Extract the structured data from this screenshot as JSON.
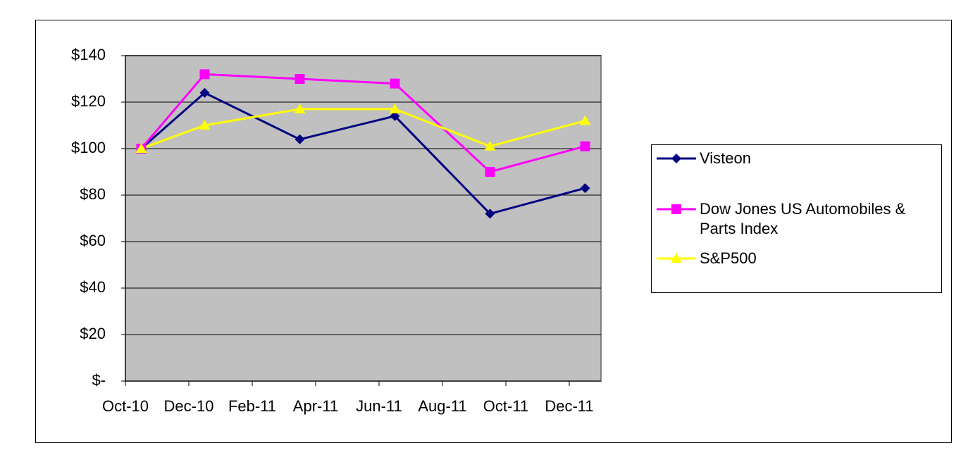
{
  "chart_data": {
    "type": "line",
    "x": [
      "2010-10",
      "2010-12",
      "2011-03",
      "2011-06",
      "2011-09",
      "2011-12"
    ],
    "xlim": [
      "2010-10",
      "2012-01"
    ],
    "xticks": [
      {
        "value": "2010-10",
        "label": "Oct-10"
      },
      {
        "value": "2010-12",
        "label": "Dec-10"
      },
      {
        "value": "2011-02",
        "label": "Feb-11"
      },
      {
        "value": "2011-04",
        "label": "Apr-11"
      },
      {
        "value": "2011-06",
        "label": "Jun-11"
      },
      {
        "value": "2011-08",
        "label": "Aug-11"
      },
      {
        "value": "2011-10",
        "label": "Oct-11"
      },
      {
        "value": "2011-12",
        "label": "Dec-11"
      }
    ],
    "ylim": [
      0,
      140
    ],
    "yticks": [
      {
        "value": 0,
        "label": "$-"
      },
      {
        "value": 20,
        "label": "$20"
      },
      {
        "value": 40,
        "label": "$40"
      },
      {
        "value": 60,
        "label": "$60"
      },
      {
        "value": 80,
        "label": "$80"
      },
      {
        "value": 100,
        "label": "$100"
      },
      {
        "value": 120,
        "label": "$120"
      },
      {
        "value": 140,
        "label": "$140"
      }
    ],
    "grid": true,
    "legend": "right",
    "series": [
      {
        "name": "Visteon",
        "color": "#000080",
        "marker": "diamond",
        "values": [
          100,
          124,
          104,
          114,
          72,
          83
        ]
      },
      {
        "name": "Dow Jones US Automobiles & Parts Index",
        "color": "#ff00ff",
        "marker": "square",
        "values": [
          100,
          132,
          130,
          128,
          90,
          101
        ]
      },
      {
        "name": "S&P500",
        "color": "#ffff00",
        "marker": "triangle",
        "values": [
          100,
          110,
          117,
          117,
          101,
          112
        ]
      }
    ]
  }
}
